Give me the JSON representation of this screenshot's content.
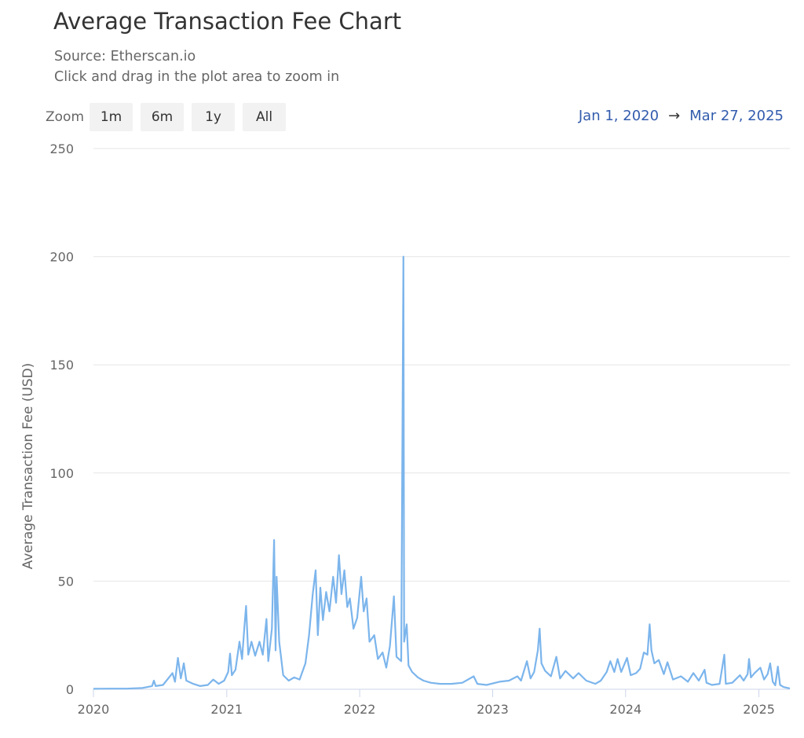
{
  "header": {
    "title": "Average Transaction Fee Chart",
    "source": "Source: Etherscan.io",
    "hint": "Click and drag in the plot area to zoom in"
  },
  "zoom": {
    "label": "Zoom",
    "buttons": [
      "1m",
      "6m",
      "1y",
      "All"
    ]
  },
  "range": {
    "from": "Jan 1, 2020",
    "arrow": "→",
    "to": "Mar 27, 2025"
  },
  "chart_data": {
    "type": "line",
    "ylabel": "Average Transaction Fee (USD)",
    "xlabel": "",
    "ylim": [
      0,
      250
    ],
    "yticks": [
      0,
      50,
      100,
      150,
      200,
      250
    ],
    "xticks": [
      "2020",
      "2021",
      "2022",
      "2023",
      "2024",
      "2025"
    ],
    "xlim": [
      "2020-01-01",
      "2025-03-27"
    ],
    "grid": true,
    "line_color": "#7cb5ec",
    "series": [
      {
        "values": [
          [
            "2020-01-01",
            0.2
          ],
          [
            "2020-02-15",
            0.3
          ],
          [
            "2020-04-01",
            0.3
          ],
          [
            "2020-05-15",
            0.6
          ],
          [
            "2020-06-10",
            1.5
          ],
          [
            "2020-06-15",
            4.0
          ],
          [
            "2020-06-20",
            1.5
          ],
          [
            "2020-07-10",
            2.0
          ],
          [
            "2020-08-05",
            7.5
          ],
          [
            "2020-08-12",
            3.5
          ],
          [
            "2020-08-20",
            14.5
          ],
          [
            "2020-08-28",
            5.0
          ],
          [
            "2020-09-05",
            12.0
          ],
          [
            "2020-09-12",
            4.0
          ],
          [
            "2020-10-01",
            2.5
          ],
          [
            "2020-10-20",
            1.5
          ],
          [
            "2020-11-10",
            2.0
          ],
          [
            "2020-11-25",
            4.5
          ],
          [
            "2020-12-10",
            2.5
          ],
          [
            "2020-12-25",
            4.0
          ],
          [
            "2021-01-05",
            8.0
          ],
          [
            "2021-01-10",
            16.5
          ],
          [
            "2021-01-15",
            6.5
          ],
          [
            "2021-01-25",
            9.0
          ],
          [
            "2021-02-05",
            22.0
          ],
          [
            "2021-02-12",
            14.0
          ],
          [
            "2021-02-18",
            28.0
          ],
          [
            "2021-02-23",
            38.5
          ],
          [
            "2021-03-01",
            16.0
          ],
          [
            "2021-03-10",
            22.0
          ],
          [
            "2021-03-20",
            15.5
          ],
          [
            "2021-04-01",
            22.0
          ],
          [
            "2021-04-10",
            16.0
          ],
          [
            "2021-04-20",
            32.5
          ],
          [
            "2021-04-25",
            13.0
          ],
          [
            "2021-05-05",
            28.0
          ],
          [
            "2021-05-11",
            69.0
          ],
          [
            "2021-05-15",
            18.0
          ],
          [
            "2021-05-18",
            52.0
          ],
          [
            "2021-05-25",
            22.0
          ],
          [
            "2021-06-05",
            6.5
          ],
          [
            "2021-06-20",
            4.0
          ],
          [
            "2021-07-05",
            5.5
          ],
          [
            "2021-07-20",
            4.5
          ],
          [
            "2021-08-05",
            12.0
          ],
          [
            "2021-08-15",
            25.0
          ],
          [
            "2021-08-25",
            44.0
          ],
          [
            "2021-09-02",
            55.0
          ],
          [
            "2021-09-08",
            25.0
          ],
          [
            "2021-09-15",
            47.0
          ],
          [
            "2021-09-22",
            32.0
          ],
          [
            "2021-10-01",
            45.0
          ],
          [
            "2021-10-10",
            36.0
          ],
          [
            "2021-10-20",
            52.0
          ],
          [
            "2021-10-28",
            40.0
          ],
          [
            "2021-11-05",
            62.0
          ],
          [
            "2021-11-12",
            44.0
          ],
          [
            "2021-11-20",
            55.0
          ],
          [
            "2021-11-28",
            38.0
          ],
          [
            "2021-12-05",
            42.0
          ],
          [
            "2021-12-15",
            28.0
          ],
          [
            "2021-12-25",
            33.0
          ],
          [
            "2022-01-05",
            52.0
          ],
          [
            "2022-01-12",
            36.0
          ],
          [
            "2022-01-20",
            42.0
          ],
          [
            "2022-01-28",
            22.0
          ],
          [
            "2022-02-10",
            25.0
          ],
          [
            "2022-02-20",
            14.0
          ],
          [
            "2022-03-05",
            17.0
          ],
          [
            "2022-03-15",
            10.0
          ],
          [
            "2022-03-25",
            20.0
          ],
          [
            "2022-04-05",
            43.0
          ],
          [
            "2022-04-12",
            15.0
          ],
          [
            "2022-04-25",
            13.0
          ],
          [
            "2022-05-01",
            200.0
          ],
          [
            "2022-05-03",
            22.0
          ],
          [
            "2022-05-10",
            30.0
          ],
          [
            "2022-05-15",
            11.0
          ],
          [
            "2022-05-25",
            8.0
          ],
          [
            "2022-06-10",
            5.5
          ],
          [
            "2022-06-25",
            4.0
          ],
          [
            "2022-07-15",
            3.0
          ],
          [
            "2022-08-10",
            2.5
          ],
          [
            "2022-09-10",
            2.5
          ],
          [
            "2022-10-10",
            3.0
          ],
          [
            "2022-11-10",
            6.0
          ],
          [
            "2022-11-20",
            2.5
          ],
          [
            "2022-12-15",
            2.0
          ],
          [
            "2023-01-20",
            3.5
          ],
          [
            "2023-02-15",
            4.0
          ],
          [
            "2023-03-10",
            6.0
          ],
          [
            "2023-03-20",
            4.0
          ],
          [
            "2023-04-05",
            13.0
          ],
          [
            "2023-04-15",
            5.0
          ],
          [
            "2023-04-25",
            8.0
          ],
          [
            "2023-05-05",
            18.0
          ],
          [
            "2023-05-10",
            28.0
          ],
          [
            "2023-05-15",
            12.0
          ],
          [
            "2023-05-25",
            8.5
          ],
          [
            "2023-06-10",
            6.0
          ],
          [
            "2023-06-25",
            15.0
          ],
          [
            "2023-07-05",
            5.0
          ],
          [
            "2023-07-20",
            8.5
          ],
          [
            "2023-08-10",
            5.0
          ],
          [
            "2023-08-25",
            7.5
          ],
          [
            "2023-09-15",
            4.0
          ],
          [
            "2023-10-10",
            2.5
          ],
          [
            "2023-10-25",
            4.0
          ],
          [
            "2023-11-10",
            8.0
          ],
          [
            "2023-11-20",
            13.0
          ],
          [
            "2023-12-01",
            8.0
          ],
          [
            "2023-12-10",
            14.0
          ],
          [
            "2023-12-20",
            8.0
          ],
          [
            "2024-01-05",
            14.5
          ],
          [
            "2024-01-15",
            6.5
          ],
          [
            "2024-01-30",
            7.5
          ],
          [
            "2024-02-10",
            9.5
          ],
          [
            "2024-02-20",
            17.0
          ],
          [
            "2024-03-01",
            16.0
          ],
          [
            "2024-03-07",
            30.0
          ],
          [
            "2024-03-12",
            18.0
          ],
          [
            "2024-03-20",
            12.0
          ],
          [
            "2024-04-01",
            13.5
          ],
          [
            "2024-04-15",
            7.0
          ],
          [
            "2024-04-25",
            12.5
          ],
          [
            "2024-05-10",
            4.5
          ],
          [
            "2024-06-01",
            6.0
          ],
          [
            "2024-06-20",
            3.5
          ],
          [
            "2024-07-05",
            7.5
          ],
          [
            "2024-07-20",
            4.0
          ],
          [
            "2024-08-05",
            9.0
          ],
          [
            "2024-08-10",
            3.0
          ],
          [
            "2024-08-25",
            2.0
          ],
          [
            "2024-09-15",
            2.5
          ],
          [
            "2024-09-28",
            16.0
          ],
          [
            "2024-10-02",
            2.5
          ],
          [
            "2024-10-20",
            3.0
          ],
          [
            "2024-11-10",
            6.5
          ],
          [
            "2024-11-20",
            4.0
          ],
          [
            "2024-12-01",
            7.0
          ],
          [
            "2024-12-05",
            14.0
          ],
          [
            "2024-12-10",
            5.5
          ],
          [
            "2024-12-20",
            7.5
          ],
          [
            "2025-01-05",
            10.0
          ],
          [
            "2025-01-15",
            4.5
          ],
          [
            "2025-01-25",
            7.0
          ],
          [
            "2025-02-01",
            12.0
          ],
          [
            "2025-02-08",
            3.5
          ],
          [
            "2025-02-15",
            1.8
          ],
          [
            "2025-02-22",
            10.5
          ],
          [
            "2025-02-28",
            2.0
          ],
          [
            "2025-03-10",
            1.0
          ],
          [
            "2025-03-27",
            0.4
          ]
        ]
      }
    ]
  }
}
